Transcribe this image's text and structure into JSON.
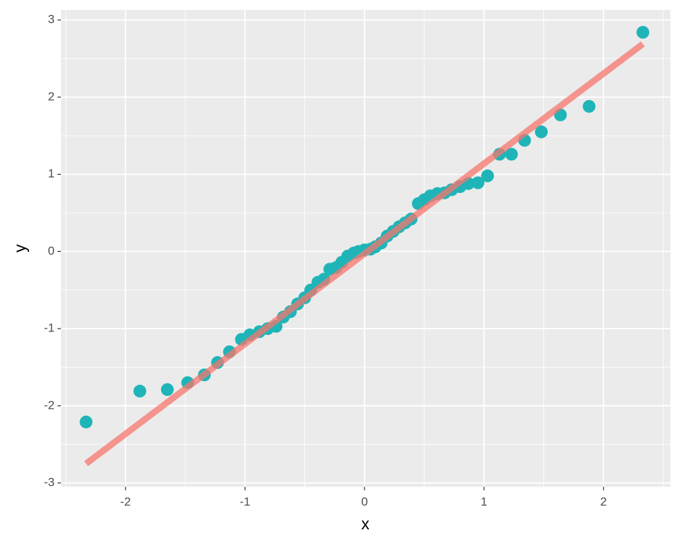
{
  "chart_data": {
    "type": "scatter",
    "x_label": "x",
    "y_label": "y",
    "xlim": [
      -2.54,
      2.56
    ],
    "ylim": [
      -3.05,
      3.13
    ],
    "xticks": [
      -2,
      -1,
      0,
      1,
      2
    ],
    "yticks": [
      -3,
      -2,
      -1,
      0,
      1,
      2,
      3
    ],
    "grid": true,
    "series": [
      {
        "type": "scatter",
        "color": "#1FB5B8",
        "x": [
          -2.33,
          -1.88,
          -1.65,
          -1.48,
          -1.34,
          -1.23,
          -1.13,
          -1.03,
          -0.96,
          -0.88,
          -0.81,
          -0.74,
          -0.68,
          -0.62,
          -0.56,
          -0.5,
          -0.45,
          -0.39,
          -0.34,
          -0.29,
          -0.24,
          -0.19,
          -0.14,
          -0.09,
          -0.05,
          0.0,
          0.05,
          0.09,
          0.14,
          0.19,
          0.24,
          0.29,
          0.34,
          0.39,
          0.45,
          0.5,
          0.55,
          0.61,
          0.67,
          0.73,
          0.8,
          0.87,
          0.95,
          1.03,
          1.13,
          1.23,
          1.34,
          1.48,
          1.64,
          1.88,
          2.33
        ],
        "values": [
          -2.21,
          -1.81,
          -1.79,
          -1.7,
          -1.6,
          -1.44,
          -1.3,
          -1.14,
          -1.08,
          -1.04,
          -1.0,
          -0.97,
          -0.85,
          -0.78,
          -0.68,
          -0.6,
          -0.5,
          -0.4,
          -0.36,
          -0.23,
          -0.21,
          -0.14,
          -0.06,
          -0.02,
          0.0,
          0.02,
          0.03,
          0.06,
          0.11,
          0.2,
          0.26,
          0.32,
          0.37,
          0.42,
          0.62,
          0.67,
          0.72,
          0.75,
          0.76,
          0.8,
          0.84,
          0.88,
          0.89,
          0.98,
          1.26,
          1.26,
          1.44,
          1.55,
          1.77,
          1.88,
          2.84
        ]
      },
      {
        "type": "line",
        "color": "#F8766D",
        "x": [
          -2.33,
          2.33
        ],
        "values": [
          -2.75,
          2.69
        ]
      }
    ]
  }
}
